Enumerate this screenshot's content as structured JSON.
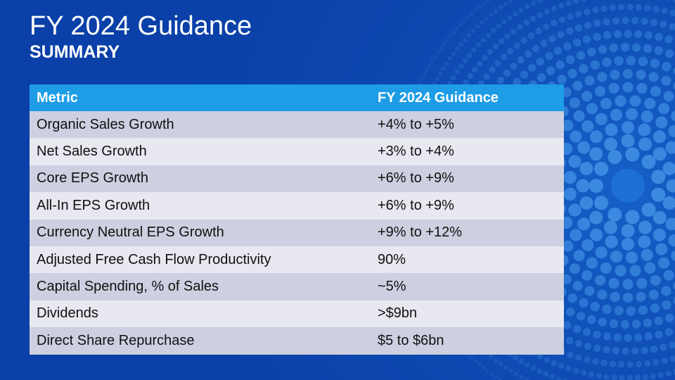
{
  "title": "FY 2024 Guidance",
  "subtitle": "SUMMARY",
  "colors": {
    "background": "#0a40a8",
    "header": "#1e9de6",
    "row_odd": "#ccd0e0",
    "row_even": "#e7e8f0",
    "dots": "#3f8fe3"
  },
  "table": {
    "headers": [
      "Metric",
      "FY 2024 Guidance"
    ],
    "rows": [
      [
        "Organic Sales Growth",
        "+4% to +5%"
      ],
      [
        "Net Sales Growth",
        "+3% to +4%"
      ],
      [
        "Core EPS Growth",
        "+6% to +9%"
      ],
      [
        "All-In EPS Growth",
        "+6% to +9%"
      ],
      [
        "Currency Neutral EPS Growth",
        "+9% to +12%"
      ],
      [
        "Adjusted Free Cash Flow Productivity",
        "90%"
      ],
      [
        "Capital Spending, % of Sales",
        "~5%"
      ],
      [
        "Dividends",
        ">$9bn"
      ],
      [
        "Direct Share Repurchase",
        "$5 to $6bn"
      ]
    ]
  }
}
